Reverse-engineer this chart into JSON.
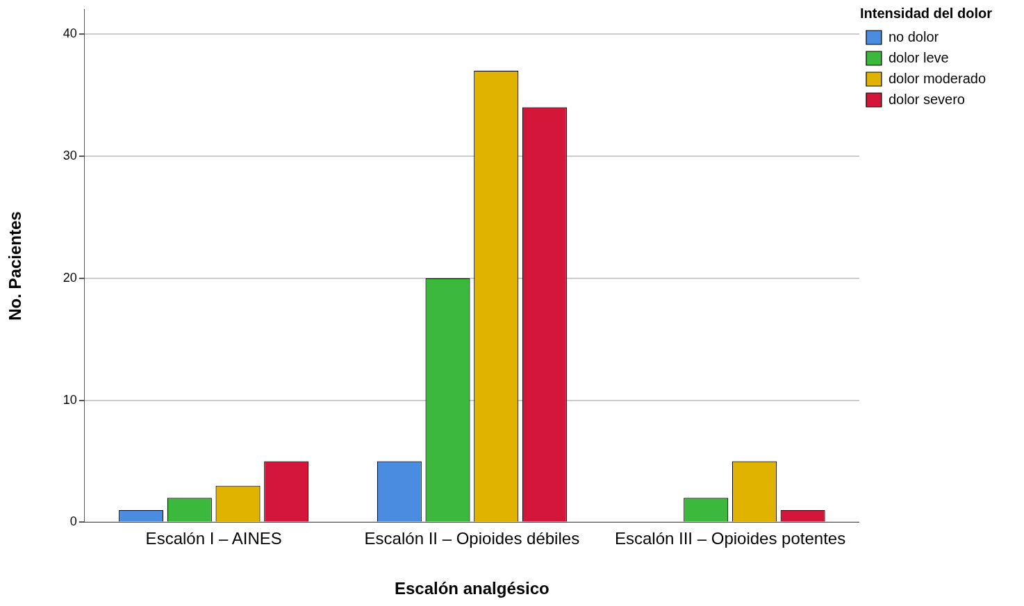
{
  "chart_data": {
    "type": "bar",
    "xlabel": "Escalón analgésico",
    "ylabel": "No. Pacientes",
    "legend_title": "Intensidad del dolor",
    "categories": [
      "Escalón I – AINES",
      "Escalón II – Opioides débiles",
      "Escalón III – Opioides potentes"
    ],
    "series": [
      {
        "name": "no dolor",
        "color": "#4a8de0",
        "values": [
          1,
          5,
          0
        ]
      },
      {
        "name": "dolor leve",
        "color": "#3cb83c",
        "values": [
          2,
          20,
          2
        ]
      },
      {
        "name": "dolor moderado",
        "color": "#e0b300",
        "values": [
          3,
          37,
          5
        ]
      },
      {
        "name": "dolor severo",
        "color": "#d4163a",
        "values": [
          5,
          34,
          1
        ]
      }
    ],
    "ylim": [
      0,
      42
    ],
    "yticks": [
      0,
      10,
      20,
      30,
      40
    ],
    "grid": "y",
    "legend": "top right"
  }
}
